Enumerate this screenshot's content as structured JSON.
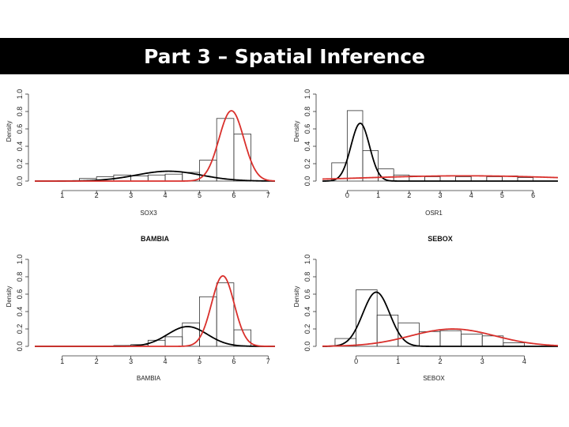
{
  "slide": {
    "title": "Part 3 – Spatial Inference"
  },
  "chart_data": [
    {
      "type": "histogram",
      "title": "",
      "xlabel": "SOX3",
      "ylabel": "Density",
      "xlim": [
        0.2,
        7.2
      ],
      "ylim": [
        0,
        1.0
      ],
      "xticks": [
        1,
        2,
        3,
        4,
        5,
        6,
        7
      ],
      "yticks": [
        0.0,
        0.2,
        0.4,
        0.6,
        0.8,
        1.0
      ],
      "bins": [
        {
          "x0": 1.5,
          "x1": 2.0,
          "density": 0.03
        },
        {
          "x0": 2.0,
          "x1": 2.5,
          "density": 0.05
        },
        {
          "x0": 2.5,
          "x1": 3.0,
          "density": 0.07
        },
        {
          "x0": 3.0,
          "x1": 3.5,
          "density": 0.06
        },
        {
          "x0": 3.5,
          "x1": 4.0,
          "density": 0.07
        },
        {
          "x0": 4.0,
          "x1": 4.5,
          "density": 0.08
        },
        {
          "x0": 4.5,
          "x1": 5.0,
          "density": 0.1
        },
        {
          "x0": 5.0,
          "x1": 5.5,
          "density": 0.24
        },
        {
          "x0": 5.5,
          "x1": 6.0,
          "density": 0.72
        },
        {
          "x0": 6.0,
          "x1": 6.5,
          "density": 0.54
        }
      ],
      "curves": [
        {
          "color": "#000000",
          "weight": 0.27,
          "mean": 4.1,
          "sd": 0.95
        },
        {
          "color": "#d9302c",
          "weight": 0.73,
          "mean": 5.93,
          "sd": 0.36
        }
      ]
    },
    {
      "type": "histogram",
      "title": "",
      "xlabel": "OSR1",
      "ylabel": "Density",
      "xlim": [
        -0.8,
        6.8
      ],
      "ylim": [
        0,
        1.0
      ],
      "xticks": [
        0,
        1,
        2,
        3,
        4,
        5,
        6
      ],
      "yticks": [
        0.0,
        0.2,
        0.4,
        0.6,
        0.8,
        1.0
      ],
      "bins": [
        {
          "x0": -0.5,
          "x1": 0.0,
          "density": 0.21
        },
        {
          "x0": 0.0,
          "x1": 0.5,
          "density": 0.81
        },
        {
          "x0": 0.5,
          "x1": 1.0,
          "density": 0.35
        },
        {
          "x0": 1.0,
          "x1": 1.5,
          "density": 0.14
        },
        {
          "x0": 1.5,
          "x1": 2.0,
          "density": 0.07
        },
        {
          "x0": 2.0,
          "x1": 2.5,
          "density": 0.06
        },
        {
          "x0": 2.5,
          "x1": 3.0,
          "density": 0.05
        },
        {
          "x0": 3.0,
          "x1": 3.5,
          "density": 0.06
        },
        {
          "x0": 3.5,
          "x1": 4.0,
          "density": 0.05
        },
        {
          "x0": 4.0,
          "x1": 4.5,
          "density": 0.06
        },
        {
          "x0": 4.5,
          "x1": 5.0,
          "density": 0.05
        },
        {
          "x0": 5.0,
          "x1": 5.5,
          "density": 0.06
        },
        {
          "x0": 5.5,
          "x1": 6.0,
          "density": 0.04
        }
      ],
      "curves": [
        {
          "color": "#000000",
          "weight": 0.5,
          "mean": 0.42,
          "sd": 0.3
        },
        {
          "color": "#d9302c",
          "weight": 0.5,
          "mean": 3.8,
          "sd": 3.3
        }
      ]
    },
    {
      "type": "histogram",
      "title": "BAMBIA",
      "xlabel": "BAMBIA",
      "ylabel": "Density",
      "xlim": [
        0.2,
        7.2
      ],
      "ylim": [
        0,
        1.0
      ],
      "xticks": [
        1,
        2,
        3,
        4,
        5,
        6,
        7
      ],
      "yticks": [
        0.0,
        0.2,
        0.4,
        0.6,
        0.8,
        1.0
      ],
      "bins": [
        {
          "x0": 2.5,
          "x1": 3.0,
          "density": 0.01
        },
        {
          "x0": 3.0,
          "x1": 3.5,
          "density": 0.02
        },
        {
          "x0": 3.5,
          "x1": 4.0,
          "density": 0.07
        },
        {
          "x0": 4.0,
          "x1": 4.5,
          "density": 0.11
        },
        {
          "x0": 4.5,
          "x1": 5.0,
          "density": 0.27
        },
        {
          "x0": 5.0,
          "x1": 5.5,
          "density": 0.57
        },
        {
          "x0": 5.5,
          "x1": 6.0,
          "density": 0.73
        },
        {
          "x0": 6.0,
          "x1": 6.5,
          "density": 0.19
        }
      ],
      "curves": [
        {
          "color": "#000000",
          "weight": 0.33,
          "mean": 4.65,
          "sd": 0.58
        },
        {
          "color": "#d9302c",
          "weight": 0.67,
          "mean": 5.68,
          "sd": 0.33
        }
      ]
    },
    {
      "type": "histogram",
      "title": "SEBOX",
      "xlabel": "SEBOX",
      "ylabel": "Density",
      "xlim": [
        -0.8,
        4.8
      ],
      "ylim": [
        0,
        1.0
      ],
      "xticks": [
        0,
        1,
        2,
        3,
        4
      ],
      "yticks": [
        0.0,
        0.2,
        0.4,
        0.6,
        0.8,
        1.0
      ],
      "bins": [
        {
          "x0": -0.5,
          "x1": 0.0,
          "density": 0.09
        },
        {
          "x0": 0.0,
          "x1": 0.5,
          "density": 0.65
        },
        {
          "x0": 0.5,
          "x1": 1.0,
          "density": 0.36
        },
        {
          "x0": 1.0,
          "x1": 1.5,
          "density": 0.27
        },
        {
          "x0": 1.5,
          "x1": 2.0,
          "density": 0.17
        },
        {
          "x0": 2.0,
          "x1": 2.5,
          "density": 0.18
        },
        {
          "x0": 2.5,
          "x1": 3.0,
          "density": 0.14
        },
        {
          "x0": 3.0,
          "x1": 3.5,
          "density": 0.12
        },
        {
          "x0": 3.5,
          "x1": 4.0,
          "density": 0.04
        }
      ],
      "curves": [
        {
          "color": "#000000",
          "weight": 0.5,
          "mean": 0.48,
          "sd": 0.32
        },
        {
          "color": "#d9302c",
          "weight": 0.5,
          "mean": 2.3,
          "sd": 1.0
        }
      ]
    }
  ]
}
